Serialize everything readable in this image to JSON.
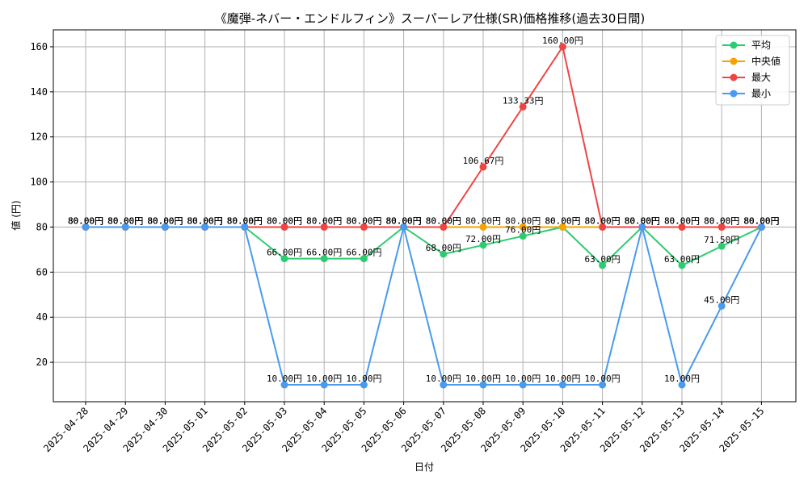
{
  "chart_data": {
    "type": "line",
    "title": "《魔弾-ネバー・エンドルフィン》スーパーレア仕様(SR)価格推移(過去30日間)",
    "xlabel": "日付",
    "ylabel": "値 (円)",
    "ylim": [
      2.5,
      167.5
    ],
    "yticks": [
      20,
      40,
      60,
      80,
      100,
      120,
      140,
      160
    ],
    "grid": true,
    "legend_position": "top-right",
    "value_suffix": "円",
    "categories": [
      "2025-04-28",
      "2025-04-29",
      "2025-04-30",
      "2025-05-01",
      "2025-05-02",
      "2025-05-03",
      "2025-05-04",
      "2025-05-05",
      "2025-05-06",
      "2025-05-07",
      "2025-05-08",
      "2025-05-09",
      "2025-05-10",
      "2025-05-11",
      "2025-05-12",
      "2025-05-13",
      "2025-05-14",
      "2025-05-15"
    ],
    "series": [
      {
        "name": "平均",
        "color": "#2ecc71",
        "values": [
          80,
          80,
          80,
          80,
          80,
          66,
          66,
          66,
          80,
          68,
          72,
          76,
          80,
          63,
          80,
          63,
          71.5,
          80
        ]
      },
      {
        "name": "中央値",
        "color": "#f5a300",
        "values": [
          80,
          80,
          80,
          80,
          80,
          80,
          80,
          80,
          80,
          80,
          80,
          80,
          80,
          80,
          80,
          80,
          80,
          80
        ]
      },
      {
        "name": "最大",
        "color": "#ef4444",
        "values": [
          80,
          80,
          80,
          80,
          80,
          80,
          80,
          80,
          80,
          80,
          106.67,
          133.33,
          160,
          80,
          80,
          80,
          80,
          80
        ]
      },
      {
        "name": "最小",
        "color": "#4a9af0",
        "values": [
          80,
          80,
          80,
          80,
          80,
          10,
          10,
          10,
          80,
          10,
          10,
          10,
          10,
          10,
          80,
          10,
          45,
          80
        ]
      }
    ]
  }
}
